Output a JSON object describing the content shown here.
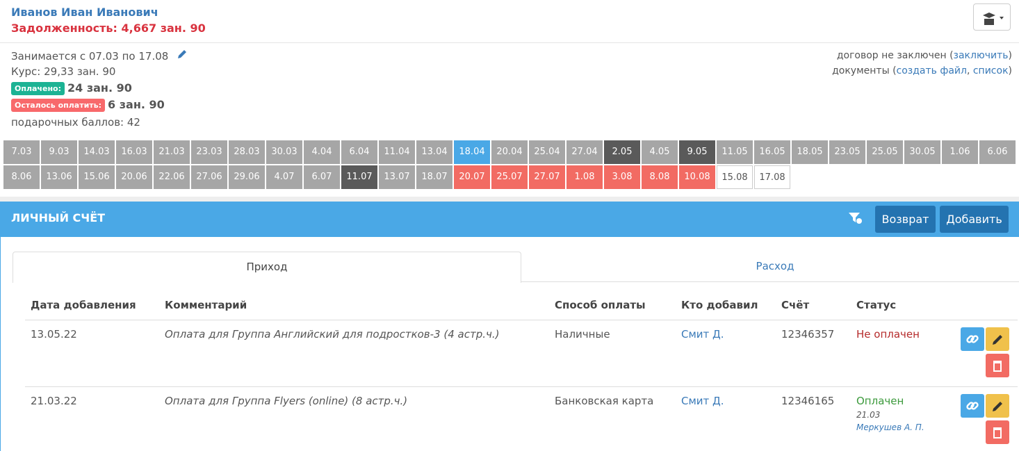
{
  "header": {
    "name": "Иванов Иван Иванович",
    "debt": "Задолженность: 4,667 зан. 90"
  },
  "info": {
    "period": "Занимается с 07.03 по 17.08",
    "course": "Курс: 29,33 зан. 90",
    "paid_badge": "Оплачено:",
    "paid_value": "24 зан. 90",
    "remaining_badge": "Осталось оплатить:",
    "remaining_value": "6 зан. 90",
    "bonus": "подарочных баллов: 42",
    "contract": {
      "prefix": "договор не заключен (",
      "link": "заключить",
      "suffix": ")"
    },
    "documents": {
      "prefix": "документы (",
      "link1": "создать файл",
      "sep": ", ",
      "link2": "список",
      "suffix": ")"
    }
  },
  "dates": [
    {
      "label": "7.03",
      "color": "#a6a6a6"
    },
    {
      "label": "9.03",
      "color": "#a6a6a6"
    },
    {
      "label": "14.03",
      "color": "#a6a6a6"
    },
    {
      "label": "16.03",
      "color": "#a6a6a6"
    },
    {
      "label": "21.03",
      "color": "#a6a6a6"
    },
    {
      "label": "23.03",
      "color": "#a6a6a6"
    },
    {
      "label": "28.03",
      "color": "#a6a6a6"
    },
    {
      "label": "30.03",
      "color": "#a6a6a6"
    },
    {
      "label": "4.04",
      "color": "#a6a6a6"
    },
    {
      "label": "6.04",
      "color": "#a6a6a6"
    },
    {
      "label": "11.04",
      "color": "#a6a6a6"
    },
    {
      "label": "13.04",
      "color": "#a6a6a6"
    },
    {
      "label": "18.04",
      "color": "#4aa8e6"
    },
    {
      "label": "20.04",
      "color": "#a6a6a6"
    },
    {
      "label": "25.04",
      "color": "#a6a6a6"
    },
    {
      "label": "27.04",
      "color": "#a6a6a6"
    },
    {
      "label": "2.05",
      "color": "#5a5a5a"
    },
    {
      "label": "4.05",
      "color": "#a6a6a6"
    },
    {
      "label": "9.05",
      "color": "#5a5a5a"
    },
    {
      "label": "11.05",
      "color": "#a6a6a6"
    },
    {
      "label": "16.05",
      "color": "#a6a6a6"
    },
    {
      "label": "18.05",
      "color": "#a6a6a6"
    },
    {
      "label": "23.05",
      "color": "#a6a6a6"
    },
    {
      "label": "25.05",
      "color": "#a6a6a6"
    },
    {
      "label": "30.05",
      "color": "#a6a6a6"
    },
    {
      "label": "1.06",
      "color": "#a6a6a6"
    },
    {
      "label": "6.06",
      "color": "#a6a6a6"
    },
    {
      "label": "8.06",
      "color": "#a6a6a6"
    },
    {
      "label": "13.06",
      "color": "#a6a6a6"
    },
    {
      "label": "15.06",
      "color": "#a6a6a6"
    },
    {
      "label": "20.06",
      "color": "#a6a6a6"
    },
    {
      "label": "22.06",
      "color": "#a6a6a6"
    },
    {
      "label": "27.06",
      "color": "#a6a6a6"
    },
    {
      "label": "29.06",
      "color": "#a6a6a6"
    },
    {
      "label": "4.07",
      "color": "#a6a6a6"
    },
    {
      "label": "6.07",
      "color": "#a6a6a6"
    },
    {
      "label": "11.07",
      "color": "#5a5a5a"
    },
    {
      "label": "13.07",
      "color": "#a6a6a6"
    },
    {
      "label": "18.07",
      "color": "#a6a6a6"
    },
    {
      "label": "20.07",
      "color": "#f26b63"
    },
    {
      "label": "25.07",
      "color": "#f26b63"
    },
    {
      "label": "27.07",
      "color": "#f26b63"
    },
    {
      "label": "1.08",
      "color": "#f26b63"
    },
    {
      "label": "3.08",
      "color": "#f26b63"
    },
    {
      "label": "8.08",
      "color": "#f26b63"
    },
    {
      "label": "10.08",
      "color": "#f26b63"
    },
    {
      "label": "15.08",
      "color": "#ffffff"
    },
    {
      "label": "17.08",
      "color": "#ffffff"
    }
  ],
  "account": {
    "title": "ЛИЧНЫЙ СЧЁТ",
    "buttons": [
      "Возврат",
      "Добавить"
    ],
    "tabs": [
      "Приход",
      "Расход"
    ],
    "columns": [
      "Дата добавления",
      "Комментарий",
      "Способ оплаты",
      "Кто добавил",
      "Счёт",
      "Статус"
    ],
    "rows": [
      {
        "date": "13.05.22",
        "comment": "Оплата для Группа Английский для подростков-3 (4 астр.ч.)",
        "method": "Наличные",
        "author": "Смит Д.",
        "invoice": "12346357",
        "status": "Не оплачен",
        "status_color": "#b52b2b"
      },
      {
        "date": "21.03.22",
        "comment": "Оплата для Группа Flyers (online) (8 астр.ч.)",
        "method": "Банковская карта",
        "author": "Смит Д.",
        "invoice": "12346165",
        "status": "Оплачен",
        "status_color": "#3c9a3c",
        "status_date": "21.03",
        "status_by": "Меркушев А. П."
      }
    ]
  }
}
